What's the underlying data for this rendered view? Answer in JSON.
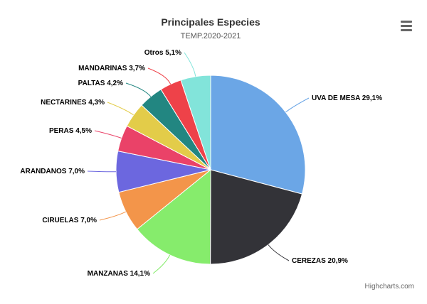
{
  "chart_data": {
    "type": "pie",
    "title": "Principales Especies",
    "subtitle": "TEMP.2020-2021",
    "categories": [
      "UVA DE MESA",
      "CEREZAS",
      "MANZANAS",
      "CIRUELAS",
      "ARANDANOS",
      "PERAS",
      "NECTARINES",
      "PALTAS",
      "MANDARINAS",
      "Otros"
    ],
    "values": [
      29.1,
      20.9,
      14.1,
      7.0,
      7.0,
      4.5,
      4.3,
      4.2,
      3.7,
      5.1
    ],
    "labels": [
      "UVA DE MESA 29,1%",
      "CEREZAS 20,9%",
      "MANZANAS 14,1%",
      "CIRUELAS 7,0%",
      "ARANDANOS 7,0%",
      "PERAS 4,5%",
      "NECTARINES 4,3%",
      "PALTAS 4,2%",
      "MANDARINAS 3,7%",
      "Otros 5,1%"
    ],
    "colors": [
      "#6ba6e6",
      "#333338",
      "#86ec6c",
      "#f3954a",
      "#6c67df",
      "#ea4268",
      "#e3cc49",
      "#228681",
      "#ee4249",
      "#82e4da"
    ],
    "legend": "none"
  },
  "credits": "Highcharts.com",
  "menu_icon": "hamburger-menu-icon"
}
